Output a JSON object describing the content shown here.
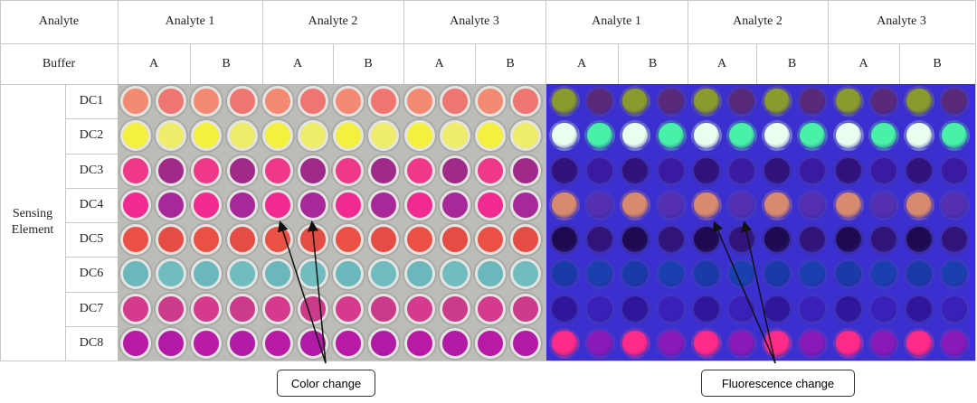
{
  "header": {
    "analyte_label": "Analyte",
    "buffer_label": "Buffer",
    "analytes": [
      "Analyte 1",
      "Analyte 2",
      "Analyte 3",
      "Analyte 1",
      "Analyte 2",
      "Analyte 3"
    ],
    "buffers": [
      "A",
      "B",
      "A",
      "B",
      "A",
      "B",
      "A",
      "B",
      "A",
      "B",
      "A",
      "B"
    ]
  },
  "side_label": "Sensing Element",
  "rows": [
    "DC1",
    "DC2",
    "DC3",
    "DC4",
    "DC5",
    "DC6",
    "DC7",
    "DC8"
  ],
  "color_plate": [
    [
      "#f58a72",
      "#ef7570"
    ],
    [
      "#f4f040",
      "#eeec6a"
    ],
    [
      "#f0388a",
      "#a02a8a"
    ],
    [
      "#f02a90",
      "#a8289a"
    ],
    [
      "#ea5044",
      "#e44c44"
    ],
    [
      "#6ab8bc",
      "#70bcbe"
    ],
    [
      "#d63a8c",
      "#cc3a8a"
    ],
    [
      "#b81aa6",
      "#b01aa4"
    ]
  ],
  "fluor_plate": [
    [
      "#8a9a2e",
      "#5a2a7a"
    ],
    [
      "#e8fff0",
      "#48f0a8"
    ],
    [
      "#30127a",
      "#3a1aa0"
    ],
    [
      "#d88a70",
      "#5430b0"
    ],
    [
      "#1e0a50",
      "#30147a"
    ],
    [
      "#1a3aa8",
      "#1a40b0"
    ],
    [
      "#30169a",
      "#3a20b8"
    ],
    [
      "#ff2a8a",
      "#8a1ab8"
    ]
  ],
  "callouts": {
    "color": "Color change",
    "fluorescence": "Fluorescence change"
  }
}
